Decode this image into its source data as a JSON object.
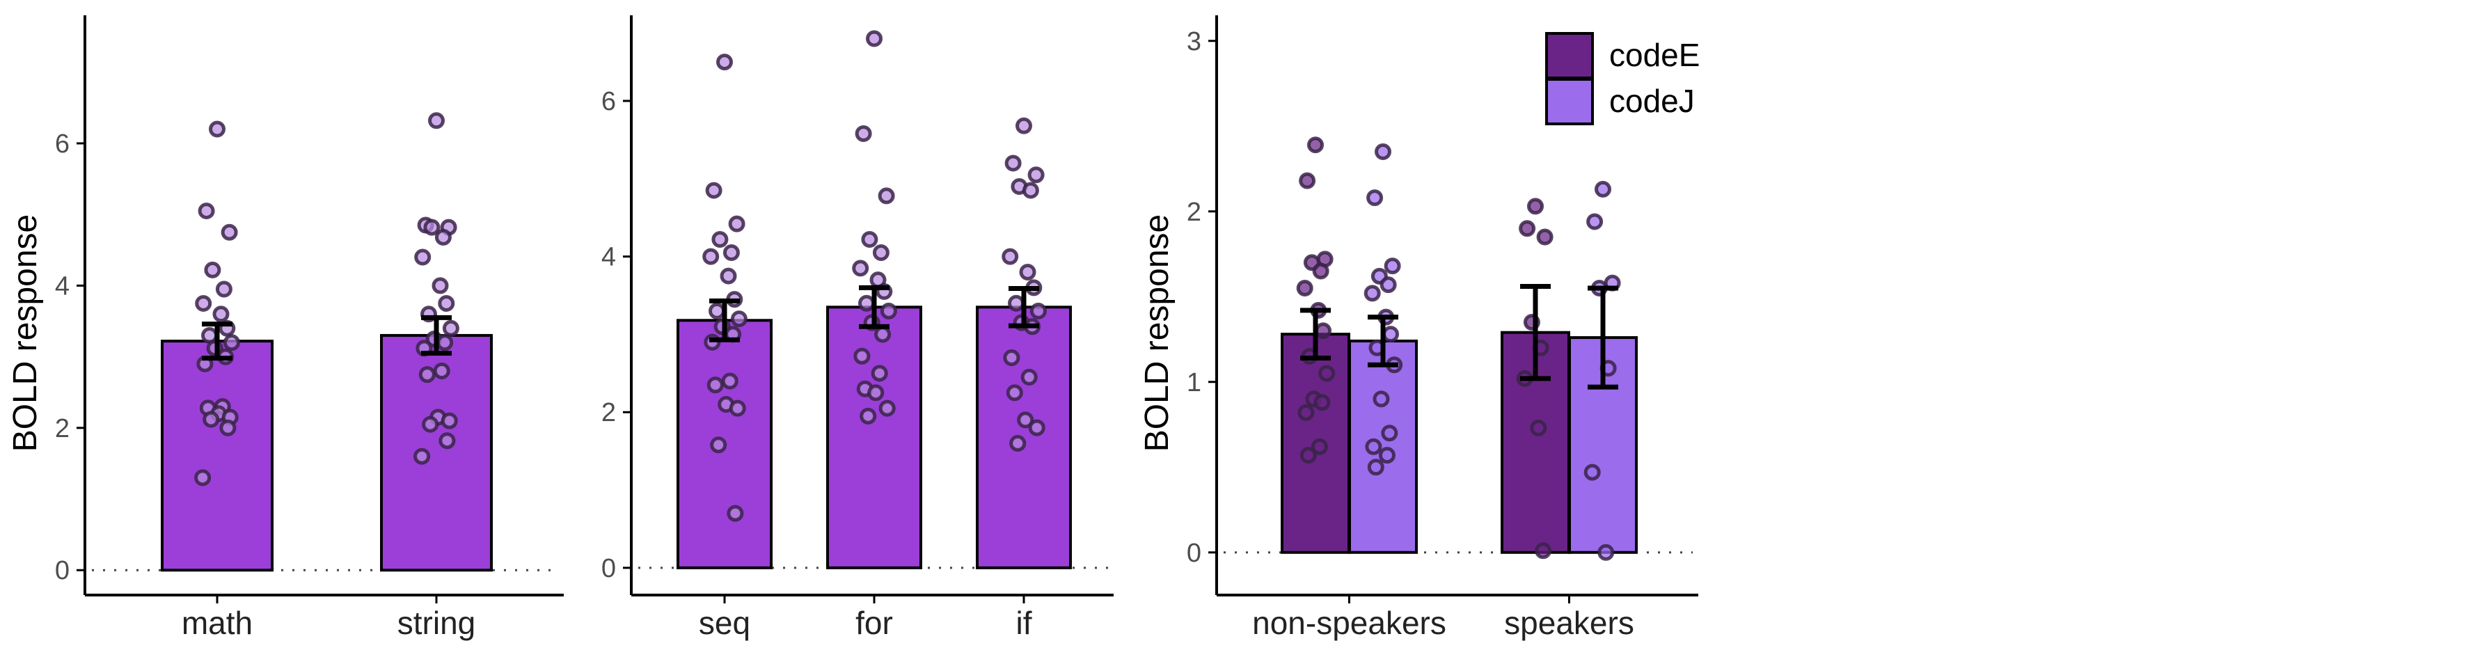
{
  "chart_data": [
    {
      "type": "bar",
      "categories": [
        "math",
        "string"
      ],
      "ylabel": "BOLD response",
      "xlabel": "",
      "ylim": [
        -0.35,
        7.8
      ],
      "yticks": [
        0,
        2,
        4,
        6
      ],
      "bar_color": "#9B3FD8",
      "point_color": "#B98BE0",
      "values": [
        3.22,
        3.3
      ],
      "error": [
        0.24,
        0.25
      ],
      "points": [
        [
          6.2,
          5.05,
          4.75,
          4.22,
          3.95,
          3.75,
          3.6,
          3.4,
          3.3,
          3.2,
          3.12,
          3.0,
          2.9,
          2.3,
          2.28,
          2.2,
          2.15,
          2.12,
          2.0,
          1.3
        ],
        [
          6.32,
          4.85,
          4.82,
          4.82,
          4.68,
          4.4,
          4.0,
          3.75,
          3.6,
          3.4,
          3.25,
          3.2,
          3.12,
          2.8,
          2.75,
          2.15,
          2.1,
          2.05,
          1.82,
          1.6
        ]
      ]
    },
    {
      "type": "bar",
      "categories": [
        "seq",
        "for",
        "if"
      ],
      "ylabel": "",
      "xlabel": "",
      "ylim": [
        -0.35,
        7.1
      ],
      "yticks": [
        0,
        2,
        4,
        6
      ],
      "bar_color": "#9B3FD8",
      "point_color": "#B98BE0",
      "values": [
        3.18,
        3.35,
        3.35
      ],
      "error": [
        0.25,
        0.25,
        0.24
      ],
      "points": [
        [
          6.5,
          4.85,
          4.42,
          4.22,
          4.05,
          4.0,
          3.75,
          3.45,
          3.3,
          3.2,
          3.1,
          3.0,
          2.9,
          2.4,
          2.35,
          2.1,
          2.05,
          1.58,
          0.7
        ],
        [
          6.8,
          5.58,
          4.78,
          4.22,
          4.05,
          3.85,
          3.7,
          3.55,
          3.4,
          3.3,
          3.15,
          3.0,
          2.72,
          2.5,
          2.3,
          2.25,
          2.05,
          1.95
        ],
        [
          5.68,
          5.2,
          5.05,
          4.9,
          4.85,
          4.0,
          3.8,
          3.6,
          3.4,
          3.3,
          3.15,
          3.1,
          2.7,
          2.45,
          2.25,
          1.9,
          1.8,
          1.6
        ]
      ]
    },
    {
      "type": "bar",
      "categories": [
        "non-speakers",
        "speakers"
      ],
      "ylabel": "BOLD response",
      "xlabel": "",
      "ylim": [
        -0.25,
        3.15
      ],
      "yticks": [
        0,
        1,
        2,
        3
      ],
      "legend": {
        "position": "top-right",
        "entries": [
          {
            "label": "codeE",
            "color": "#6A2487"
          },
          {
            "label": "codeJ",
            "color": "#9B6CEB"
          }
        ]
      },
      "series": [
        {
          "name": "codeE",
          "color": "#6A2487",
          "values": [
            1.28,
            1.29
          ],
          "error": [
            0.14,
            0.27
          ],
          "points": [
            [
              2.39,
              2.18,
              1.72,
              1.7,
              1.65,
              1.55,
              1.42,
              1.3,
              1.15,
              1.05,
              0.9,
              0.88,
              0.82,
              0.62,
              0.57
            ],
            [
              2.03,
              1.9,
              1.85,
              1.35,
              1.2,
              1.02,
              0.73,
              0.01
            ]
          ]
        },
        {
          "name": "codeJ",
          "color": "#9B6CEB",
          "values": [
            1.24,
            1.26
          ],
          "error": [
            0.14,
            0.29
          ],
          "points": [
            [
              2.35,
              2.08,
              1.68,
              1.62,
              1.57,
              1.52,
              1.38,
              1.28,
              1.2,
              1.1,
              0.9,
              0.7,
              0.62,
              0.57,
              0.5
            ],
            [
              2.13,
              1.94,
              1.58,
              1.55,
              1.08,
              0.47,
              0.0
            ]
          ]
        }
      ]
    }
  ]
}
